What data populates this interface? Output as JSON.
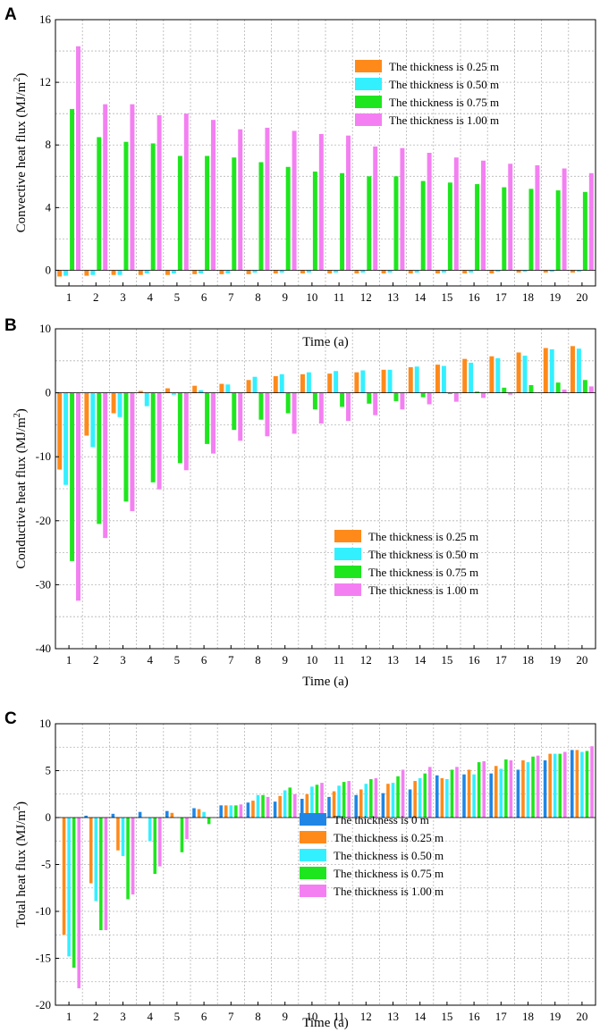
{
  "colors": {
    "t0": "#1f86e6",
    "t025": "#ff8a1a",
    "t050": "#33f0ff",
    "t075": "#1ee61e",
    "t100": "#f47ff2"
  },
  "chart_data": [
    {
      "panel": "A",
      "type": "bar",
      "title": "",
      "xlabel": "Time (a)",
      "ylabel": "Convective heat flux (MJ/m2)",
      "ylabel_main": "Convective heat flux (MJ/m",
      "ylabel_sup": "2",
      "ylabel_end": ")",
      "ylim": [
        -1,
        16
      ],
      "yticks": [
        0,
        4,
        8,
        12,
        16
      ],
      "categories": [
        "1",
        "2",
        "3",
        "4",
        "5",
        "6",
        "7",
        "8",
        "9",
        "10",
        "11",
        "12",
        "13",
        "14",
        "15",
        "16",
        "17",
        "18",
        "19",
        "20"
      ],
      "legend_position": "top-right",
      "grid": true,
      "series": [
        {
          "name": "The thickness is 0.25 m",
          "color_key": "t025",
          "values": [
            -0.4,
            -0.35,
            -0.3,
            -0.3,
            -0.3,
            -0.25,
            -0.25,
            -0.25,
            -0.2,
            -0.2,
            -0.2,
            -0.2,
            -0.2,
            -0.2,
            -0.2,
            -0.2,
            -0.2,
            -0.15,
            -0.15,
            -0.15
          ]
        },
        {
          "name": "The thickness is 0.50 m",
          "color_key": "t050",
          "values": [
            -0.35,
            -0.3,
            -0.3,
            -0.2,
            -0.2,
            -0.2,
            -0.2,
            -0.15,
            -0.15,
            -0.15,
            -0.15,
            -0.15,
            -0.15,
            -0.15,
            -0.15,
            -0.15,
            -0.1,
            -0.1,
            -0.1,
            -0.1
          ]
        },
        {
          "name": "The thickness is 0.75 m",
          "color_key": "t075",
          "values": [
            10.3,
            8.5,
            8.2,
            8.1,
            7.3,
            7.3,
            7.2,
            6.9,
            6.6,
            6.3,
            6.2,
            6.0,
            6.0,
            5.7,
            5.6,
            5.5,
            5.3,
            5.2,
            5.1,
            5.0
          ]
        },
        {
          "name": "The thickness is 1.00 m",
          "color_key": "t100",
          "values": [
            14.3,
            10.6,
            10.6,
            9.9,
            10.0,
            9.6,
            9.0,
            9.1,
            8.9,
            8.7,
            8.6,
            7.9,
            7.8,
            7.5,
            7.2,
            7.0,
            6.8,
            6.7,
            6.5,
            6.2
          ]
        }
      ]
    },
    {
      "panel": "B",
      "type": "bar",
      "title": "",
      "xlabel": "Time (a)",
      "ylabel": "Conductive heat flux (MJ/m2)",
      "ylabel_main": "Conductive heat flux (MJ/m",
      "ylabel_sup": "2",
      "ylabel_end": ")",
      "ylim": [
        -40,
        10
      ],
      "yticks": [
        -40,
        -30,
        -20,
        -10,
        0,
        10
      ],
      "categories": [
        "1",
        "2",
        "3",
        "4",
        "5",
        "6",
        "7",
        "8",
        "9",
        "10",
        "11",
        "12",
        "13",
        "14",
        "15",
        "16",
        "17",
        "18",
        "19",
        "20"
      ],
      "legend_position": "center",
      "grid": true,
      "series": [
        {
          "name": "The thickness is 0.25 m",
          "color_key": "t025",
          "values": [
            -12.0,
            -6.7,
            -3.2,
            0.3,
            0.7,
            1.1,
            1.4,
            2.0,
            2.6,
            2.9,
            3.0,
            3.2,
            3.6,
            4.0,
            4.4,
            5.3,
            5.7,
            6.3,
            7.0,
            7.3
          ]
        },
        {
          "name": "The thickness is 0.50 m",
          "color_key": "t050",
          "values": [
            -14.4,
            -8.5,
            -3.8,
            -2.1,
            -0.3,
            0.4,
            1.3,
            2.5,
            2.9,
            3.2,
            3.4,
            3.5,
            3.6,
            4.1,
            4.2,
            4.7,
            5.4,
            5.8,
            6.8,
            6.9
          ]
        },
        {
          "name": "The thickness is 0.75 m",
          "color_key": "t075",
          "values": [
            -26.3,
            -20.5,
            -17.0,
            -14.0,
            -11.0,
            -8.0,
            -5.8,
            -4.2,
            -3.2,
            -2.6,
            -2.2,
            -1.7,
            -1.3,
            -0.7,
            -0.2,
            0.2,
            0.8,
            1.2,
            1.6,
            2.0
          ]
        },
        {
          "name": "The thickness is 1.00 m",
          "color_key": "t100",
          "values": [
            -32.5,
            -22.7,
            -18.5,
            -15.1,
            -12.1,
            -9.5,
            -7.5,
            -6.8,
            -6.4,
            -4.8,
            -4.4,
            -3.5,
            -2.6,
            -1.8,
            -1.4,
            -0.8,
            -0.3,
            0.0,
            0.5,
            1.0
          ]
        }
      ]
    },
    {
      "panel": "C",
      "type": "bar",
      "title": "",
      "xlabel": "Time (a)",
      "ylabel": "Total heat flux (MJ/m2)",
      "ylabel_main": "Total heat flux (MJ/m",
      "ylabel_sup": "2",
      "ylabel_end": ")",
      "ylim": [
        -20,
        10
      ],
      "yticks": [
        -20,
        -15,
        -10,
        -5,
        0,
        5,
        10
      ],
      "categories": [
        "1",
        "2",
        "3",
        "4",
        "5",
        "6",
        "7",
        "8",
        "9",
        "10",
        "11",
        "12",
        "13",
        "14",
        "15",
        "16",
        "17",
        "18",
        "19",
        "20"
      ],
      "legend_position": "lower-center",
      "grid": true,
      "series": [
        {
          "name": "The thickness is 0 m",
          "color_key": "t0",
          "values": [
            0.05,
            0.2,
            0.4,
            0.6,
            0.7,
            1.0,
            1.3,
            1.6,
            1.7,
            2.0,
            2.2,
            2.4,
            2.6,
            3.0,
            4.5,
            4.6,
            4.7,
            5.1,
            6.1,
            7.2
          ]
        },
        {
          "name": "The thickness is 0.25 m",
          "color_key": "t025",
          "values": [
            -12.5,
            -7.0,
            -3.5,
            0.0,
            0.5,
            0.9,
            1.3,
            1.8,
            2.3,
            2.5,
            2.8,
            3.0,
            3.6,
            3.9,
            4.2,
            5.1,
            5.5,
            6.1,
            6.8,
            7.2
          ]
        },
        {
          "name": "The thickness is 0.50 m",
          "color_key": "t050",
          "values": [
            -14.8,
            -8.9,
            -4.1,
            -2.5,
            0.0,
            0.6,
            1.3,
            2.4,
            2.9,
            3.3,
            3.4,
            3.6,
            3.7,
            4.2,
            4.1,
            4.6,
            5.2,
            5.9,
            6.8,
            7.0
          ]
        },
        {
          "name": "The thickness is 0.75 m",
          "color_key": "t075",
          "values": [
            -16.0,
            -12.0,
            -8.7,
            -6.0,
            -3.7,
            -0.7,
            1.3,
            2.4,
            3.2,
            3.5,
            3.8,
            4.1,
            4.4,
            4.7,
            5.1,
            5.9,
            6.2,
            6.5,
            6.8,
            7.1
          ]
        },
        {
          "name": "The thickness is 1.00 m",
          "color_key": "t100",
          "values": [
            -18.2,
            -12.0,
            -8.2,
            -5.2,
            -2.3,
            0.0,
            1.4,
            2.2,
            2.5,
            3.7,
            3.9,
            4.2,
            5.1,
            5.4,
            5.4,
            6.0,
            6.1,
            6.6,
            7.0,
            7.6
          ]
        }
      ]
    }
  ]
}
